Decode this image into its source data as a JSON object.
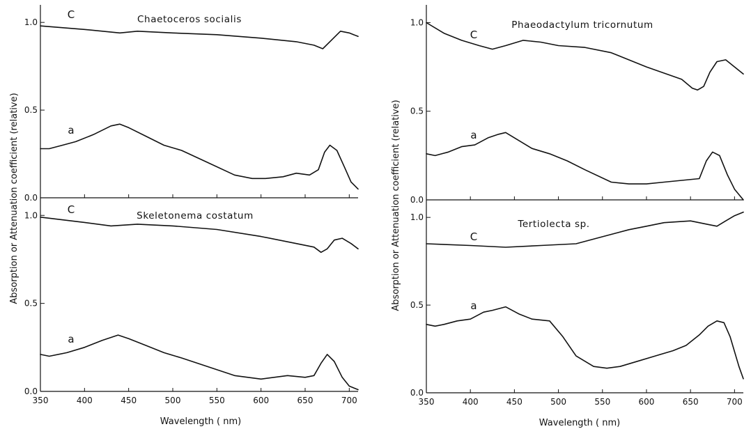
{
  "figure": {
    "ylabel": "Absorption or Attenuation coefficient (relative)",
    "xlabel": "Wavelength ( nm)"
  },
  "chart_data": [
    {
      "type": "line",
      "title": "Chaetoceros socialis",
      "xlim": [
        350,
        710
      ],
      "ylim": [
        0,
        1.1
      ],
      "yticks": [
        "0.0",
        "0.5",
        "1.0"
      ],
      "xticks": [
        "350",
        "400",
        "450",
        "500",
        "550",
        "600",
        "650",
        "700"
      ],
      "series": [
        {
          "name": "C",
          "x": [
            350,
            400,
            440,
            460,
            500,
            550,
            600,
            640,
            660,
            670,
            680,
            690,
            700,
            710
          ],
          "y": [
            0.98,
            0.96,
            0.94,
            0.95,
            0.94,
            0.93,
            0.91,
            0.89,
            0.87,
            0.85,
            0.9,
            0.95,
            0.94,
            0.92
          ]
        },
        {
          "name": "a",
          "x": [
            350,
            360,
            375,
            390,
            410,
            430,
            440,
            450,
            470,
            490,
            510,
            540,
            570,
            590,
            605,
            625,
            640,
            655,
            665,
            672,
            678,
            686,
            695,
            702,
            710
          ],
          "y": [
            0.28,
            0.28,
            0.3,
            0.32,
            0.36,
            0.41,
            0.42,
            0.4,
            0.35,
            0.3,
            0.27,
            0.2,
            0.13,
            0.11,
            0.11,
            0.12,
            0.14,
            0.13,
            0.16,
            0.26,
            0.3,
            0.27,
            0.17,
            0.09,
            0.05
          ]
        }
      ]
    },
    {
      "type": "line",
      "title": "Skeletonema costatum",
      "xlim": [
        350,
        710
      ],
      "ylim": [
        0,
        1.1
      ],
      "yticks": [
        "0.0",
        "0.5",
        "1.0"
      ],
      "xticks": [
        "350",
        "400",
        "450",
        "500",
        "550",
        "600",
        "650",
        "700"
      ],
      "series": [
        {
          "name": "C",
          "x": [
            350,
            400,
            430,
            460,
            500,
            550,
            600,
            640,
            660,
            668,
            675,
            683,
            692,
            702,
            710
          ],
          "y": [
            0.99,
            0.96,
            0.94,
            0.95,
            0.94,
            0.92,
            0.88,
            0.84,
            0.82,
            0.79,
            0.81,
            0.86,
            0.87,
            0.84,
            0.81
          ]
        },
        {
          "name": "a",
          "x": [
            350,
            360,
            380,
            400,
            420,
            438,
            450,
            470,
            490,
            510,
            540,
            570,
            600,
            630,
            650,
            660,
            668,
            675,
            683,
            692,
            700,
            710
          ],
          "y": [
            0.21,
            0.2,
            0.22,
            0.25,
            0.29,
            0.32,
            0.3,
            0.26,
            0.22,
            0.19,
            0.14,
            0.09,
            0.07,
            0.09,
            0.08,
            0.09,
            0.16,
            0.21,
            0.17,
            0.08,
            0.03,
            0.01
          ]
        }
      ]
    },
    {
      "type": "line",
      "title": "Phaeodactylum tricornutum",
      "xlim": [
        350,
        710
      ],
      "ylim": [
        0,
        1.1
      ],
      "yticks": [
        "0.0",
        "0.5",
        "1.0"
      ],
      "xticks": [
        "350",
        "400",
        "450",
        "500",
        "550",
        "600",
        "650",
        "700"
      ],
      "series": [
        {
          "name": "C",
          "x": [
            350,
            370,
            390,
            410,
            425,
            440,
            460,
            480,
            500,
            530,
            560,
            600,
            640,
            652,
            658,
            665,
            672,
            680,
            690,
            700,
            710
          ],
          "y": [
            1.0,
            0.94,
            0.9,
            0.87,
            0.85,
            0.87,
            0.9,
            0.89,
            0.87,
            0.86,
            0.83,
            0.75,
            0.68,
            0.63,
            0.62,
            0.64,
            0.72,
            0.78,
            0.79,
            0.75,
            0.71
          ]
        },
        {
          "name": "a",
          "x": [
            350,
            360,
            375,
            390,
            405,
            420,
            432,
            440,
            450,
            470,
            490,
            510,
            530,
            560,
            580,
            600,
            620,
            640,
            660,
            668,
            675,
            683,
            692,
            700,
            710
          ],
          "y": [
            0.26,
            0.25,
            0.27,
            0.3,
            0.31,
            0.35,
            0.37,
            0.38,
            0.35,
            0.29,
            0.26,
            0.22,
            0.17,
            0.1,
            0.09,
            0.09,
            0.1,
            0.11,
            0.12,
            0.22,
            0.27,
            0.25,
            0.14,
            0.06,
            0.0
          ]
        }
      ]
    },
    {
      "type": "line",
      "title": "Tertiolecta sp.",
      "xlim": [
        350,
        710
      ],
      "ylim": [
        0,
        1.1
      ],
      "yticks": [
        "0.0",
        "0.5",
        "1.0"
      ],
      "xticks": [
        "350",
        "400",
        "450",
        "500",
        "550",
        "600",
        "650",
        "700"
      ],
      "series": [
        {
          "name": "C",
          "x": [
            350,
            400,
            440,
            480,
            520,
            550,
            580,
            600,
            620,
            650,
            670,
            680,
            690,
            700,
            710
          ],
          "y": [
            0.85,
            0.84,
            0.83,
            0.84,
            0.85,
            0.89,
            0.93,
            0.95,
            0.97,
            0.98,
            0.96,
            0.95,
            0.98,
            1.01,
            1.03
          ]
        },
        {
          "name": "a",
          "x": [
            350,
            360,
            370,
            385,
            400,
            415,
            425,
            440,
            455,
            470,
            490,
            505,
            520,
            540,
            555,
            570,
            590,
            610,
            630,
            645,
            660,
            670,
            680,
            688,
            695,
            705,
            710
          ],
          "y": [
            0.39,
            0.38,
            0.39,
            0.41,
            0.42,
            0.46,
            0.47,
            0.49,
            0.45,
            0.42,
            0.41,
            0.32,
            0.21,
            0.15,
            0.14,
            0.15,
            0.18,
            0.21,
            0.24,
            0.27,
            0.33,
            0.38,
            0.41,
            0.4,
            0.32,
            0.15,
            0.08
          ]
        }
      ]
    }
  ]
}
